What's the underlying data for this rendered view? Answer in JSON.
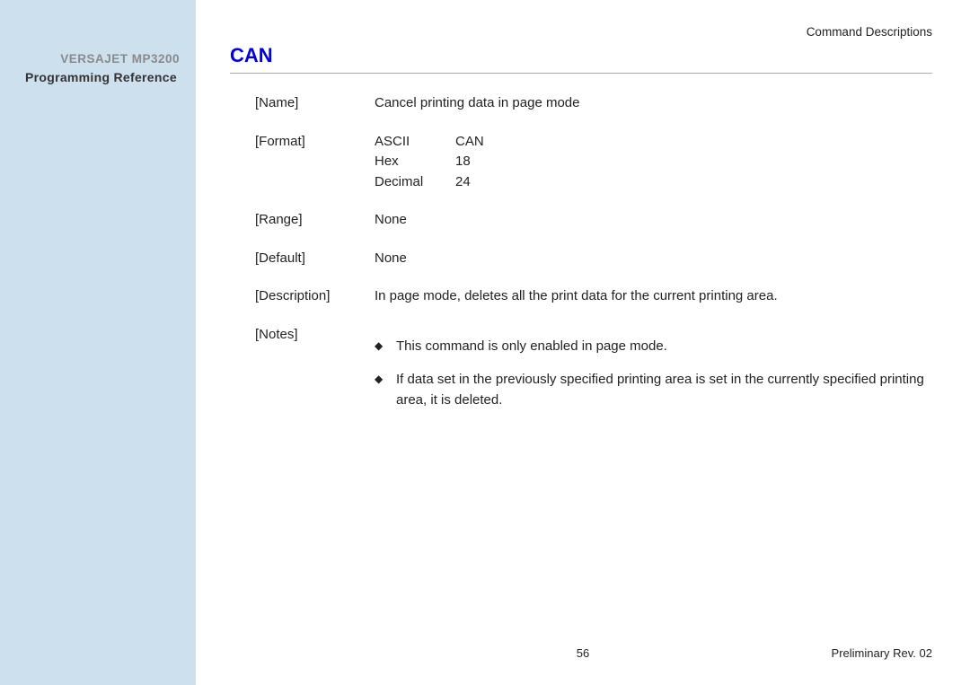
{
  "sidebar": {
    "product": "VERSAJET MP3200",
    "subtitle": "Programming Reference"
  },
  "header": {
    "section": "Command  Descriptions"
  },
  "command": {
    "title": "CAN"
  },
  "rows": {
    "name_label": "[Name]",
    "name_value": "Cancel printing data in page mode",
    "format_label": "[Format]",
    "format": {
      "ascii_k": "ASCII",
      "ascii_v": "CAN",
      "hex_k": "Hex",
      "hex_v": "18",
      "dec_k": "Decimal",
      "dec_v": "24"
    },
    "range_label": "[Range]",
    "range_value": "None",
    "default_label": "[Default]",
    "default_value": "None",
    "description_label": "[Description]",
    "description_value": "In page mode, deletes all the print data for the current printing area.",
    "notes_label": "[Notes]",
    "notes": [
      "This command is only enabled in page mode.",
      "If data set in the previously specified printing area is set in the currently specified printing area, it is deleted."
    ]
  },
  "footer": {
    "page": "56",
    "rev": "Preliminary Rev. 02"
  },
  "bullet_glyph": "◆"
}
